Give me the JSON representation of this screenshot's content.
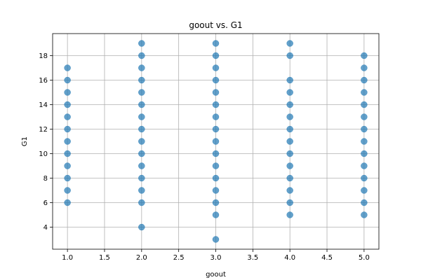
{
  "chart_data": {
    "type": "scatter",
    "title": "goout vs. G1",
    "xlabel": "goout",
    "ylabel": "G1",
    "xlim": [
      0.8,
      5.2
    ],
    "ylim": [
      2.2,
      19.8
    ],
    "xticks": [
      1.0,
      1.5,
      2.0,
      2.5,
      3.0,
      3.5,
      4.0,
      4.5,
      5.0
    ],
    "xtick_labels": [
      "1.0",
      "1.5",
      "2.0",
      "2.5",
      "3.0",
      "3.5",
      "4.0",
      "4.5",
      "5.0"
    ],
    "yticks": [
      4,
      6,
      8,
      10,
      12,
      14,
      16,
      18
    ],
    "ytick_labels": [
      "4",
      "6",
      "8",
      "10",
      "12",
      "14",
      "16",
      "18"
    ],
    "grid": true,
    "marker_color": "#1f77b4",
    "marker_alpha": 0.7,
    "points": [
      [
        1,
        6
      ],
      [
        1,
        7
      ],
      [
        1,
        8
      ],
      [
        1,
        9
      ],
      [
        1,
        10
      ],
      [
        1,
        11
      ],
      [
        1,
        12
      ],
      [
        1,
        13
      ],
      [
        1,
        14
      ],
      [
        1,
        15
      ],
      [
        1,
        16
      ],
      [
        1,
        17
      ],
      [
        2,
        4
      ],
      [
        2,
        6
      ],
      [
        2,
        7
      ],
      [
        2,
        8
      ],
      [
        2,
        9
      ],
      [
        2,
        10
      ],
      [
        2,
        11
      ],
      [
        2,
        12
      ],
      [
        2,
        13
      ],
      [
        2,
        14
      ],
      [
        2,
        15
      ],
      [
        2,
        16
      ],
      [
        2,
        17
      ],
      [
        2,
        18
      ],
      [
        2,
        19
      ],
      [
        3,
        3
      ],
      [
        3,
        5
      ],
      [
        3,
        6
      ],
      [
        3,
        7
      ],
      [
        3,
        8
      ],
      [
        3,
        9
      ],
      [
        3,
        10
      ],
      [
        3,
        11
      ],
      [
        3,
        12
      ],
      [
        3,
        13
      ],
      [
        3,
        14
      ],
      [
        3,
        15
      ],
      [
        3,
        16
      ],
      [
        3,
        17
      ],
      [
        3,
        18
      ],
      [
        3,
        19
      ],
      [
        4,
        5
      ],
      [
        4,
        6
      ],
      [
        4,
        7
      ],
      [
        4,
        8
      ],
      [
        4,
        9
      ],
      [
        4,
        10
      ],
      [
        4,
        11
      ],
      [
        4,
        12
      ],
      [
        4,
        13
      ],
      [
        4,
        14
      ],
      [
        4,
        15
      ],
      [
        4,
        16
      ],
      [
        4,
        18
      ],
      [
        4,
        19
      ],
      [
        5,
        5
      ],
      [
        5,
        6
      ],
      [
        5,
        7
      ],
      [
        5,
        8
      ],
      [
        5,
        9
      ],
      [
        5,
        10
      ],
      [
        5,
        11
      ],
      [
        5,
        12
      ],
      [
        5,
        13
      ],
      [
        5,
        14
      ],
      [
        5,
        15
      ],
      [
        5,
        16
      ],
      [
        5,
        17
      ],
      [
        5,
        18
      ]
    ]
  }
}
